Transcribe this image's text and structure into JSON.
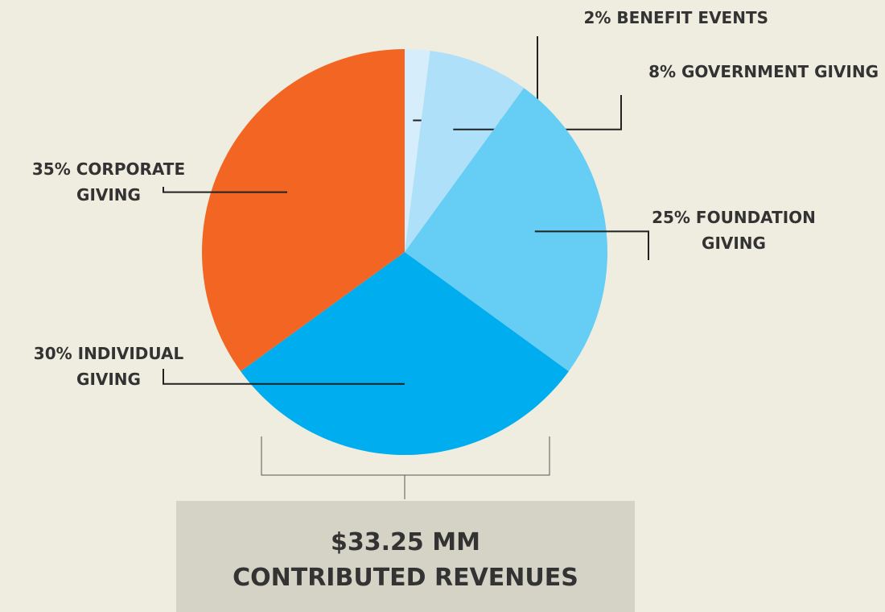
{
  "chart_data": {
    "type": "pie",
    "categories": [
      "BENEFIT EVENTS",
      "GOVERNMENT GIVING",
      "FOUNDATION GIVING",
      "INDIVIDUAL GIVING",
      "CORPORATE GIVING"
    ],
    "values": [
      2,
      8,
      25,
      30,
      35
    ],
    "value_labels": [
      "2%",
      "8%",
      "25%",
      "30%",
      "35%"
    ],
    "colors": [
      "#d6eefb",
      "#aee0f9",
      "#66cdf5",
      "#00adef",
      "#f26522"
    ],
    "total": "$33.25 MM",
    "total_label": "CONTRIBUTED REVENUES"
  }
}
